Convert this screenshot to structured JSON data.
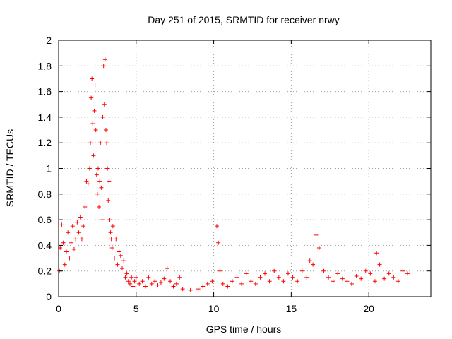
{
  "chart_data": {
    "type": "scatter",
    "title": "Day 251 of 2015, SRMTID for receiver nrwy",
    "xlabel": "GPS time / hours",
    "ylabel": "SRMTID / TECUs",
    "xlim": [
      0,
      24
    ],
    "ylim": [
      0,
      2
    ],
    "xticks": [
      0,
      5,
      10,
      15,
      20
    ],
    "yticks": [
      0,
      0.2,
      0.4,
      0.6,
      0.8,
      1,
      1.2,
      1.4,
      1.6,
      1.8,
      2
    ],
    "xtick_labels": [
      "0",
      "5",
      "10",
      "15",
      "20"
    ],
    "ytick_labels": [
      "0",
      "0.2",
      "0.4",
      "0.6",
      "0.8",
      "1",
      "1.2",
      "1.4",
      "1.6",
      "1.8",
      "2"
    ],
    "grid": true,
    "marker": "plus",
    "color": "#ff0000",
    "series": [
      {
        "name": "SRMTID",
        "x": [
          0.05,
          0.1,
          0.2,
          0.3,
          0.4,
          0.5,
          0.6,
          0.7,
          0.8,
          0.9,
          1.0,
          1.1,
          1.2,
          1.3,
          1.4,
          1.5,
          1.6,
          1.7,
          1.8,
          1.9,
          2.0,
          2.05,
          2.1,
          2.15,
          2.2,
          2.25,
          2.3,
          2.35,
          2.4,
          2.45,
          2.5,
          2.55,
          2.6,
          2.65,
          2.7,
          2.75,
          2.8,
          2.85,
          2.9,
          2.95,
          3.0,
          3.05,
          3.1,
          3.15,
          3.2,
          3.25,
          3.3,
          3.35,
          3.4,
          3.45,
          3.5,
          3.6,
          3.7,
          3.8,
          3.9,
          4.0,
          4.1,
          4.2,
          4.3,
          4.4,
          4.5,
          4.6,
          4.7,
          4.8,
          4.9,
          5.0,
          5.2,
          5.4,
          5.6,
          5.8,
          6.0,
          6.2,
          6.4,
          6.6,
          6.8,
          7.0,
          7.2,
          7.4,
          7.6,
          7.8,
          8.0,
          8.5,
          9.0,
          9.3,
          9.6,
          9.9,
          10.2,
          10.3,
          10.4,
          10.6,
          10.9,
          11.2,
          11.5,
          11.8,
          12.1,
          12.4,
          12.7,
          13.0,
          13.3,
          13.6,
          13.9,
          14.2,
          14.5,
          14.8,
          15.1,
          15.4,
          15.7,
          16.0,
          16.2,
          16.4,
          16.6,
          16.8,
          17.1,
          17.4,
          17.7,
          18.0,
          18.3,
          18.6,
          18.9,
          19.2,
          19.5,
          19.8,
          20.1,
          20.4,
          20.5,
          20.7,
          21.0,
          21.3,
          21.6,
          21.9,
          22.2,
          22.5
        ],
        "y": [
          0.2,
          0.38,
          0.56,
          0.42,
          0.25,
          0.35,
          0.5,
          0.3,
          0.42,
          0.55,
          0.37,
          0.45,
          0.58,
          0.5,
          0.62,
          0.45,
          0.55,
          0.7,
          0.9,
          0.88,
          1.0,
          1.2,
          1.55,
          1.7,
          1.35,
          1.1,
          1.45,
          1.65,
          1.3,
          0.95,
          0.8,
          1.0,
          0.7,
          0.9,
          1.2,
          0.85,
          0.6,
          1.4,
          1.8,
          1.5,
          1.85,
          1.3,
          1.2,
          1.0,
          0.75,
          0.9,
          0.6,
          0.5,
          0.45,
          0.38,
          0.55,
          0.3,
          0.45,
          0.25,
          0.35,
          0.32,
          0.22,
          0.28,
          0.15,
          0.18,
          0.12,
          0.1,
          0.15,
          0.08,
          0.12,
          0.15,
          0.1,
          0.12,
          0.08,
          0.15,
          0.1,
          0.12,
          0.09,
          0.11,
          0.14,
          0.22,
          0.12,
          0.08,
          0.1,
          0.15,
          0.06,
          0.05,
          0.06,
          0.08,
          0.1,
          0.12,
          0.55,
          0.42,
          0.2,
          0.1,
          0.08,
          0.12,
          0.15,
          0.1,
          0.18,
          0.12,
          0.1,
          0.15,
          0.18,
          0.12,
          0.2,
          0.15,
          0.12,
          0.18,
          0.15,
          0.12,
          0.2,
          0.15,
          0.28,
          0.25,
          0.48,
          0.38,
          0.2,
          0.15,
          0.12,
          0.18,
          0.14,
          0.12,
          0.1,
          0.16,
          0.14,
          0.2,
          0.18,
          0.12,
          0.34,
          0.25,
          0.14,
          0.18,
          0.15,
          0.12,
          0.2,
          0.18
        ]
      }
    ]
  }
}
